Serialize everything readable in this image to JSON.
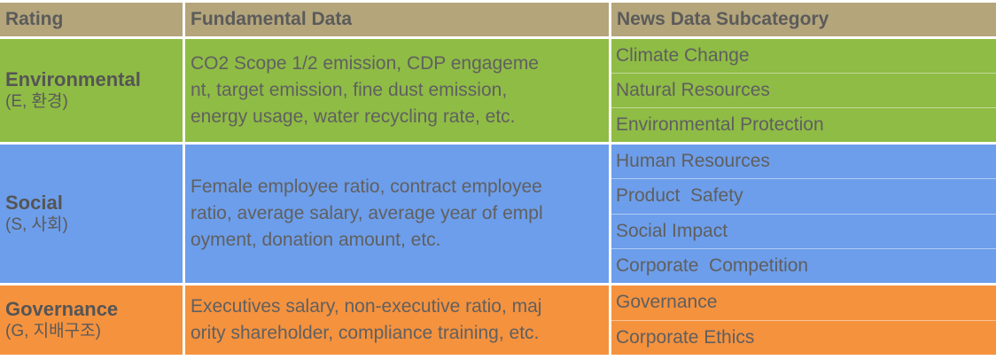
{
  "header": {
    "rating": "Rating",
    "fundamental": "Fundamental Data",
    "news": "News Data Subcategory"
  },
  "rows": [
    {
      "name": "Environmental",
      "sub": "(E, 환경)",
      "fundamental": "CO2 Scope 1/2 emission, CDP engageme\nnt, target emission, fine dust emission,\nenergy usage, water recycling rate, etc.",
      "news": [
        "Climate Change",
        "Natural Resources",
        "Environmental Protection"
      ],
      "color": "#8fbc45"
    },
    {
      "name": "Social",
      "sub": "(S, 사회)",
      "fundamental": "Female employee ratio, contract employee\nratio, average salary, average year of empl\noyment, donation amount, etc.",
      "news": [
        "Human Resources",
        "Product  Safety",
        "Social Impact",
        "Corporate  Competition"
      ],
      "color": "#6d9eeb"
    },
    {
      "name": "Governance",
      "sub": "(G, 지배구조)",
      "fundamental": "Executives salary, non-executive ratio, maj\nority shareholder, compliance training, etc.",
      "news": [
        "Governance",
        "Corporate Ethics"
      ],
      "color": "#f5923e"
    }
  ]
}
